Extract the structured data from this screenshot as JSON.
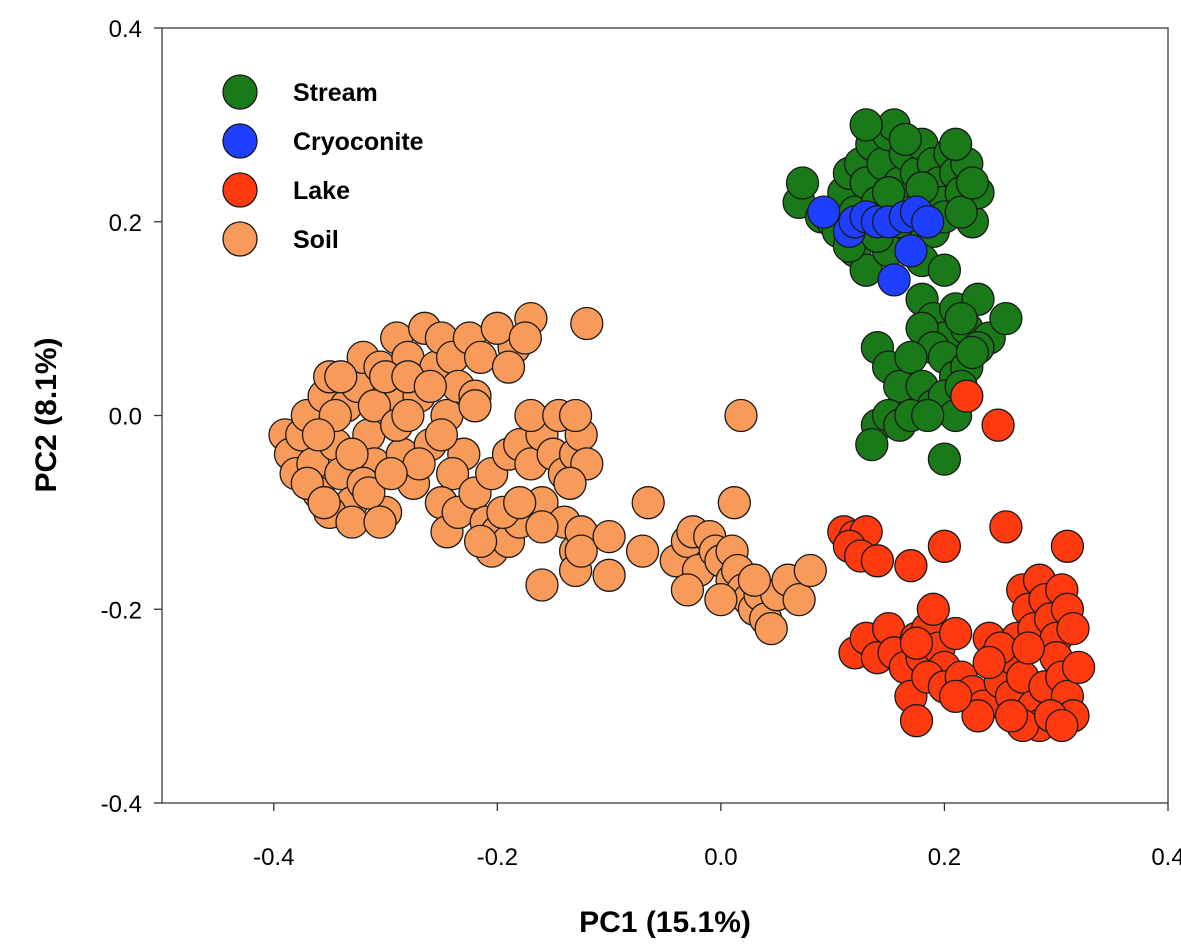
{
  "chart_data": {
    "type": "scatter",
    "title": "",
    "xlabel": "PC1 (15.1%)",
    "ylabel": "PC2 (8.1%)",
    "xlim": [
      -0.5,
      0.4
    ],
    "ylim": [
      -0.4,
      0.4
    ],
    "xticks": [
      "-0.4",
      "-0.2",
      "0.0",
      "0.2",
      "0.4"
    ],
    "yticks": [
      "-0.4",
      "-0.2",
      "0.0",
      "0.2",
      "0.4"
    ],
    "grid": false,
    "legend_position": "top-left",
    "series": [
      {
        "name": "Stream",
        "color": "#1a7a1a",
        "points": [
          [
            0.07,
            0.22
          ],
          [
            0.073,
            0.24
          ],
          [
            0.09,
            0.205
          ],
          [
            0.1,
            0.2
          ],
          [
            0.11,
            0.23
          ],
          [
            0.115,
            0.25
          ],
          [
            0.12,
            0.21
          ],
          [
            0.125,
            0.26
          ],
          [
            0.13,
            0.24
          ],
          [
            0.135,
            0.28
          ],
          [
            0.14,
            0.22
          ],
          [
            0.145,
            0.26
          ],
          [
            0.15,
            0.29
          ],
          [
            0.155,
            0.3
          ],
          [
            0.16,
            0.24
          ],
          [
            0.165,
            0.27
          ],
          [
            0.17,
            0.21
          ],
          [
            0.175,
            0.25
          ],
          [
            0.18,
            0.28
          ],
          [
            0.185,
            0.22
          ],
          [
            0.19,
            0.26
          ],
          [
            0.195,
            0.24
          ],
          [
            0.2,
            0.22
          ],
          [
            0.205,
            0.27
          ],
          [
            0.21,
            0.25
          ],
          [
            0.215,
            0.23
          ],
          [
            0.22,
            0.26
          ],
          [
            0.225,
            0.2
          ],
          [
            0.23,
            0.23
          ],
          [
            0.14,
            0.2
          ],
          [
            0.15,
            0.23
          ],
          [
            0.17,
            0.19
          ],
          [
            0.19,
            0.19
          ],
          [
            0.12,
            0.17
          ],
          [
            0.13,
            0.15
          ],
          [
            0.15,
            0.17
          ],
          [
            0.18,
            0.16
          ],
          [
            0.2,
            0.15
          ],
          [
            0.165,
            0.285
          ],
          [
            0.13,
            0.3
          ],
          [
            0.21,
            0.28
          ],
          [
            0.105,
            0.19
          ],
          [
            0.115,
            0.175
          ],
          [
            0.14,
            0.185
          ],
          [
            0.16,
            0.2
          ],
          [
            0.18,
            0.235
          ],
          [
            0.2,
            0.205
          ],
          [
            0.215,
            0.21
          ],
          [
            0.225,
            0.24
          ],
          [
            0.18,
            0.12
          ],
          [
            0.19,
            0.1
          ],
          [
            0.2,
            0.08
          ],
          [
            0.21,
            0.11
          ],
          [
            0.22,
            0.09
          ],
          [
            0.23,
            0.12
          ],
          [
            0.24,
            0.08
          ],
          [
            0.255,
            0.1
          ],
          [
            0.18,
            0.09
          ],
          [
            0.19,
            0.07
          ],
          [
            0.2,
            0.06
          ],
          [
            0.21,
            0.04
          ],
          [
            0.22,
            0.05
          ],
          [
            0.23,
            0.07
          ],
          [
            0.14,
            0.07
          ],
          [
            0.15,
            0.05
          ],
          [
            0.16,
            0.03
          ],
          [
            0.17,
            0.06
          ],
          [
            0.18,
            0.03
          ],
          [
            0.19,
            0.01
          ],
          [
            0.2,
            0.02
          ],
          [
            0.21,
            0.0
          ],
          [
            0.215,
            0.03
          ],
          [
            0.14,
            -0.01
          ],
          [
            0.135,
            -0.03
          ],
          [
            0.15,
            0.0
          ],
          [
            0.16,
            -0.01
          ],
          [
            0.17,
            0.0
          ],
          [
            0.185,
            0.0
          ],
          [
            0.2,
            -0.045
          ],
          [
            0.215,
            0.1
          ],
          [
            0.225,
            0.065
          ]
        ]
      },
      {
        "name": "Cryoconite",
        "color": "#1f3fff",
        "points": [
          [
            0.092,
            0.21
          ],
          [
            0.115,
            0.19
          ],
          [
            0.12,
            0.2
          ],
          [
            0.13,
            0.205
          ],
          [
            0.14,
            0.2
          ],
          [
            0.15,
            0.2
          ],
          [
            0.165,
            0.205
          ],
          [
            0.175,
            0.21
          ],
          [
            0.185,
            0.2
          ],
          [
            0.17,
            0.17
          ],
          [
            0.155,
            0.14
          ]
        ]
      },
      {
        "name": "Lake",
        "color": "#ff3a10",
        "points": [
          [
            0.22,
            0.02
          ],
          [
            0.248,
            -0.01
          ],
          [
            0.11,
            -0.12
          ],
          [
            0.12,
            -0.125
          ],
          [
            0.13,
            -0.12
          ],
          [
            0.115,
            -0.135
          ],
          [
            0.125,
            -0.145
          ],
          [
            0.14,
            -0.15
          ],
          [
            0.17,
            -0.155
          ],
          [
            0.2,
            -0.135
          ],
          [
            0.255,
            -0.115
          ],
          [
            0.31,
            -0.135
          ],
          [
            0.12,
            -0.245
          ],
          [
            0.13,
            -0.23
          ],
          [
            0.14,
            -0.25
          ],
          [
            0.15,
            -0.22
          ],
          [
            0.155,
            -0.245
          ],
          [
            0.165,
            -0.26
          ],
          [
            0.175,
            -0.23
          ],
          [
            0.18,
            -0.25
          ],
          [
            0.185,
            -0.22
          ],
          [
            0.19,
            -0.2
          ],
          [
            0.195,
            -0.24
          ],
          [
            0.2,
            -0.26
          ],
          [
            0.21,
            -0.225
          ],
          [
            0.17,
            -0.29
          ],
          [
            0.175,
            -0.315
          ],
          [
            0.185,
            -0.27
          ],
          [
            0.2,
            -0.28
          ],
          [
            0.215,
            -0.27
          ],
          [
            0.225,
            -0.285
          ],
          [
            0.235,
            -0.3
          ],
          [
            0.24,
            -0.23
          ],
          [
            0.245,
            -0.25
          ],
          [
            0.25,
            -0.275
          ],
          [
            0.23,
            -0.31
          ],
          [
            0.26,
            -0.29
          ],
          [
            0.265,
            -0.23
          ],
          [
            0.27,
            -0.18
          ],
          [
            0.275,
            -0.2
          ],
          [
            0.28,
            -0.22
          ],
          [
            0.285,
            -0.17
          ],
          [
            0.29,
            -0.19
          ],
          [
            0.295,
            -0.21
          ],
          [
            0.3,
            -0.23
          ],
          [
            0.305,
            -0.18
          ],
          [
            0.31,
            -0.2
          ],
          [
            0.315,
            -0.22
          ],
          [
            0.26,
            -0.25
          ],
          [
            0.27,
            -0.27
          ],
          [
            0.28,
            -0.3
          ],
          [
            0.285,
            -0.32
          ],
          [
            0.29,
            -0.28
          ],
          [
            0.3,
            -0.25
          ],
          [
            0.305,
            -0.27
          ],
          [
            0.31,
            -0.29
          ],
          [
            0.315,
            -0.31
          ],
          [
            0.32,
            -0.26
          ],
          [
            0.27,
            -0.32
          ],
          [
            0.26,
            -0.31
          ],
          [
            0.295,
            -0.31
          ],
          [
            0.305,
            -0.32
          ],
          [
            0.25,
            -0.24
          ],
          [
            0.24,
            -0.255
          ],
          [
            0.21,
            -0.29
          ],
          [
            0.175,
            -0.235
          ],
          [
            0.275,
            -0.24
          ]
        ]
      },
      {
        "name": "Soil",
        "color": "#f79a5a",
        "points": [
          [
            -0.39,
            -0.02
          ],
          [
            -0.385,
            -0.04
          ],
          [
            -0.38,
            -0.06
          ],
          [
            -0.375,
            -0.02
          ],
          [
            -0.37,
            0.0
          ],
          [
            -0.365,
            -0.05
          ],
          [
            -0.36,
            -0.08
          ],
          [
            -0.355,
            0.02
          ],
          [
            -0.35,
            0.04
          ],
          [
            -0.345,
            -0.03
          ],
          [
            -0.34,
            -0.06
          ],
          [
            -0.335,
            0.01
          ],
          [
            -0.33,
            -0.09
          ],
          [
            -0.325,
            0.03
          ],
          [
            -0.32,
            0.06
          ],
          [
            -0.315,
            -0.02
          ],
          [
            -0.31,
            -0.05
          ],
          [
            -0.305,
            0.05
          ],
          [
            -0.3,
            -0.1
          ],
          [
            -0.295,
            0.02
          ],
          [
            -0.29,
            0.08
          ],
          [
            -0.285,
            -0.04
          ],
          [
            -0.28,
            0.06
          ],
          [
            -0.275,
            -0.07
          ],
          [
            -0.27,
            0.02
          ],
          [
            -0.265,
            0.09
          ],
          [
            -0.26,
            -0.03
          ],
          [
            -0.255,
            0.05
          ],
          [
            -0.25,
            0.08
          ],
          [
            -0.245,
            0.0
          ],
          [
            -0.24,
            0.06
          ],
          [
            -0.235,
            0.03
          ],
          [
            -0.23,
            -0.04
          ],
          [
            -0.225,
            0.08
          ],
          [
            -0.22,
            0.02
          ],
          [
            -0.215,
            0.06
          ],
          [
            -0.35,
            -0.1
          ],
          [
            -0.345,
            0.0
          ],
          [
            -0.34,
            0.04
          ],
          [
            -0.33,
            -0.04
          ],
          [
            -0.32,
            -0.07
          ],
          [
            -0.31,
            0.01
          ],
          [
            -0.3,
            0.04
          ],
          [
            -0.29,
            -0.01
          ],
          [
            -0.28,
            0.0
          ],
          [
            -0.27,
            -0.05
          ],
          [
            -0.36,
            -0.02
          ],
          [
            -0.37,
            -0.07
          ],
          [
            -0.355,
            -0.09
          ],
          [
            -0.33,
            -0.11
          ],
          [
            -0.315,
            -0.08
          ],
          [
            -0.305,
            -0.11
          ],
          [
            -0.295,
            -0.06
          ],
          [
            -0.28,
            0.04
          ],
          [
            -0.26,
            0.03
          ],
          [
            -0.25,
            -0.02
          ],
          [
            -0.24,
            -0.06
          ],
          [
            -0.25,
            -0.09
          ],
          [
            -0.245,
            -0.12
          ],
          [
            -0.235,
            -0.1
          ],
          [
            -0.22,
            -0.08
          ],
          [
            -0.21,
            -0.11
          ],
          [
            -0.205,
            -0.14
          ],
          [
            -0.2,
            -0.12
          ],
          [
            -0.19,
            -0.13
          ],
          [
            -0.18,
            -0.11
          ],
          [
            -0.215,
            -0.13
          ],
          [
            -0.195,
            -0.1
          ],
          [
            -0.205,
            -0.06
          ],
          [
            -0.19,
            -0.04
          ],
          [
            -0.18,
            -0.03
          ],
          [
            -0.17,
            -0.05
          ],
          [
            -0.16,
            -0.02
          ],
          [
            -0.15,
            -0.04
          ],
          [
            -0.14,
            -0.06
          ],
          [
            -0.13,
            -0.04
          ],
          [
            -0.125,
            -0.02
          ],
          [
            -0.12,
            -0.05
          ],
          [
            -0.135,
            -0.07
          ],
          [
            -0.16,
            -0.09
          ],
          [
            -0.14,
            -0.11
          ],
          [
            -0.13,
            -0.14
          ],
          [
            -0.125,
            -0.12
          ],
          [
            -0.17,
            0.0
          ],
          [
            -0.145,
            0.0
          ],
          [
            -0.13,
            0.0
          ],
          [
            -0.185,
            0.07
          ],
          [
            -0.17,
            0.1
          ],
          [
            -0.2,
            0.09
          ],
          [
            -0.19,
            0.05
          ],
          [
            -0.22,
            0.01
          ],
          [
            -0.175,
            0.08
          ],
          [
            -0.12,
            0.095
          ],
          [
            -0.16,
            -0.115
          ],
          [
            -0.18,
            -0.09
          ],
          [
            -0.16,
            -0.175
          ],
          [
            -0.13,
            -0.16
          ],
          [
            -0.125,
            -0.14
          ],
          [
            -0.1,
            -0.125
          ],
          [
            -0.1,
            -0.165
          ],
          [
            -0.07,
            -0.14
          ],
          [
            -0.065,
            -0.09
          ],
          [
            -0.04,
            -0.15
          ],
          [
            -0.03,
            -0.13
          ],
          [
            -0.025,
            -0.12
          ],
          [
            -0.02,
            -0.16
          ],
          [
            -0.01,
            -0.125
          ],
          [
            -0.005,
            -0.14
          ],
          [
            0.0,
            -0.15
          ],
          [
            0.01,
            -0.14
          ],
          [
            0.01,
            -0.17
          ],
          [
            0.015,
            -0.16
          ],
          [
            0.02,
            -0.18
          ],
          [
            0.025,
            -0.19
          ],
          [
            0.03,
            -0.2
          ],
          [
            0.035,
            -0.185
          ],
          [
            0.04,
            -0.21
          ],
          [
            0.045,
            -0.22
          ],
          [
            0.05,
            -0.185
          ],
          [
            0.06,
            -0.17
          ],
          [
            0.07,
            -0.19
          ],
          [
            0.08,
            -0.16
          ],
          [
            -0.03,
            -0.18
          ],
          [
            0.0,
            -0.19
          ],
          [
            0.012,
            -0.09
          ],
          [
            0.018,
            0.0
          ],
          [
            0.03,
            -0.17
          ]
        ]
      }
    ]
  }
}
